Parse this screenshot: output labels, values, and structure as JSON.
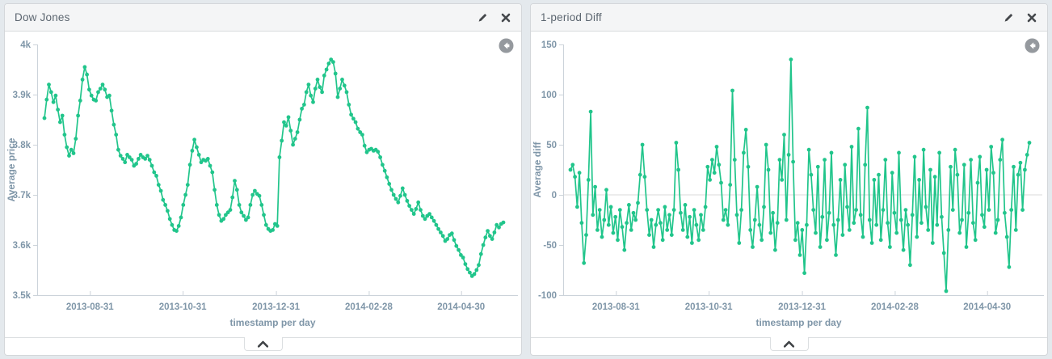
{
  "panels": [
    {
      "title": "Dow Jones",
      "actions": {
        "edit_icon": "pencil-icon",
        "close_icon": "close-icon"
      },
      "back_icon": "circle-left-arrow-icon",
      "collapse_icon": "chevron-up-icon"
    },
    {
      "title": "1-period Diff",
      "actions": {
        "edit_icon": "pencil-icon",
        "close_icon": "close-icon"
      },
      "back_icon": "circle-left-arrow-icon",
      "collapse_icon": "chevron-up-icon"
    }
  ],
  "colors": {
    "series": "#21c58b",
    "axis_text": "#7f96a8",
    "axis_line": "#ccd3da",
    "zero_line": "#d9d9d9",
    "page_bg": "#e4e9ed",
    "panel_border": "#d4d7da",
    "header_bg": "#f4f5f6",
    "title_text": "#5c6670",
    "glyph_dark": "#45484c",
    "back_circle": "#95999e"
  },
  "chart_data": [
    {
      "type": "line",
      "title": "Dow Jones",
      "ylabel": "Average price",
      "xlabel": "timestamp per day",
      "ylim": [
        3500,
        4000
      ],
      "y_ticks": [
        {
          "v": 4000,
          "label": "4k"
        },
        {
          "v": 3900,
          "label": "3.9k"
        },
        {
          "v": 3800,
          "label": "3.8k"
        },
        {
          "v": 3700,
          "label": "3.7k"
        },
        {
          "v": 3600,
          "label": "3.6k"
        },
        {
          "v": 3500,
          "label": "3.5k"
        }
      ],
      "x_ticks": [
        {
          "f": 0.112,
          "label": "2013-08-31"
        },
        {
          "f": 0.309,
          "label": "2013-10-31"
        },
        {
          "f": 0.507,
          "label": "2013-12-31"
        },
        {
          "f": 0.704,
          "label": "2014-02-28"
        },
        {
          "f": 0.9,
          "label": "2014-04-30"
        }
      ],
      "zero_line": false,
      "legend": "off",
      "grid": "off",
      "values": [
        3853,
        3890,
        3920,
        3905,
        3885,
        3898,
        3870,
        3845,
        3858,
        3820,
        3795,
        3778,
        3790,
        3783,
        3812,
        3858,
        3888,
        3930,
        3955,
        3940,
        3910,
        3898,
        3890,
        3888,
        3905,
        3912,
        3920,
        3910,
        3895,
        3898,
        3868,
        3840,
        3820,
        3790,
        3778,
        3772,
        3765,
        3780,
        3775,
        3770,
        3758,
        3762,
        3772,
        3780,
        3775,
        3772,
        3778,
        3770,
        3758,
        3745,
        3738,
        3720,
        3708,
        3690,
        3680,
        3668,
        3652,
        3640,
        3630,
        3628,
        3638,
        3655,
        3680,
        3700,
        3720,
        3760,
        3788,
        3810,
        3795,
        3780,
        3765,
        3770,
        3768,
        3772,
        3758,
        3745,
        3710,
        3680,
        3660,
        3648,
        3652,
        3660,
        3665,
        3670,
        3695,
        3728,
        3710,
        3680,
        3665,
        3658,
        3650,
        3655,
        3680,
        3700,
        3708,
        3702,
        3698,
        3680,
        3660,
        3640,
        3632,
        3628,
        3630,
        3642,
        3638,
        3775,
        3808,
        3845,
        3838,
        3855,
        3828,
        3800,
        3812,
        3825,
        3850,
        3872,
        3880,
        3905,
        3920,
        3898,
        3885,
        3912,
        3930,
        3915,
        3905,
        3938,
        3950,
        3962,
        3970,
        3965,
        3942,
        3895,
        3912,
        3930,
        3918,
        3905,
        3880,
        3860,
        3852,
        3845,
        3832,
        3825,
        3820,
        3798,
        3785,
        3790,
        3792,
        3788,
        3790,
        3786,
        3775,
        3760,
        3748,
        3735,
        3722,
        3710,
        3700,
        3692,
        3685,
        3698,
        3713,
        3700,
        3688,
        3678,
        3670,
        3662,
        3672,
        3685,
        3670,
        3658,
        3652,
        3658,
        3662,
        3655,
        3648,
        3640,
        3632,
        3625,
        3618,
        3608,
        3612,
        3620,
        3623,
        3610,
        3598,
        3590,
        3580,
        3575,
        3562,
        3552,
        3545,
        3538,
        3542,
        3550,
        3560,
        3582,
        3600,
        3615,
        3628,
        3618,
        3612,
        3625,
        3640,
        3635,
        3642,
        3645
      ]
    },
    {
      "type": "line",
      "title": "1-period Diff",
      "ylabel": "Average diff",
      "xlabel": "timestamp per day",
      "ylim": [
        -100,
        150
      ],
      "y_ticks": [
        {
          "v": 150,
          "label": "150"
        },
        {
          "v": 100,
          "label": "100"
        },
        {
          "v": 50,
          "label": "50"
        },
        {
          "v": 0,
          "label": "0"
        },
        {
          "v": -50,
          "label": "-50"
        },
        {
          "v": -100,
          "label": "-100"
        }
      ],
      "x_ticks": [
        {
          "f": 0.112,
          "label": "2013-08-31"
        },
        {
          "f": 0.309,
          "label": "2013-10-31"
        },
        {
          "f": 0.507,
          "label": "2013-12-31"
        },
        {
          "f": 0.704,
          "label": "2014-02-28"
        },
        {
          "f": 0.9,
          "label": "2014-04-30"
        }
      ],
      "zero_line": true,
      "legend": "off",
      "grid": "off",
      "values": [
        25,
        30,
        18,
        -12,
        22,
        -28,
        -68,
        -40,
        15,
        83,
        -20,
        8,
        -35,
        -15,
        -42,
        -25,
        5,
        -30,
        -12,
        -38,
        -22,
        -45,
        -15,
        -32,
        -55,
        -28,
        -10,
        -35,
        -18,
        -25,
        -8,
        20,
        50,
        18,
        -15,
        -40,
        -25,
        -52,
        -30,
        -15,
        -28,
        -45,
        -12,
        -35,
        -20,
        -40,
        -15,
        52,
        25,
        -18,
        -35,
        -10,
        -42,
        -22,
        -48,
        -15,
        -30,
        -45,
        -20,
        -35,
        -12,
        28,
        15,
        35,
        22,
        48,
        30,
        12,
        -25,
        -15,
        -30,
        10,
        104,
        35,
        -20,
        -48,
        -15,
        42,
        65,
        28,
        -35,
        -52,
        -25,
        8,
        -30,
        -45,
        -12,
        50,
        25,
        -38,
        -18,
        -55,
        -28,
        35,
        15,
        60,
        -25,
        40,
        135,
        33,
        -45,
        -28,
        -60,
        -35,
        -78,
        -30,
        45,
        20,
        -15,
        -38,
        28,
        -52,
        -22,
        35,
        -45,
        -18,
        42,
        -30,
        -60,
        -25,
        15,
        -40,
        30,
        -12,
        -35,
        48,
        -28,
        -15,
        66,
        -20,
        -42,
        30,
        87,
        -25,
        -48,
        15,
        -30,
        20,
        -45,
        -15,
        35,
        -28,
        -52,
        22,
        -18,
        -38,
        42,
        -25,
        -55,
        -15,
        -30,
        -70,
        -20,
        38,
        -42,
        15,
        -28,
        45,
        -12,
        -35,
        25,
        -48,
        18,
        -30,
        42,
        -22,
        -58,
        -96,
        -35,
        28,
        -15,
        45,
        20,
        -38,
        -25,
        30,
        -52,
        -18,
        35,
        -28,
        -45,
        12,
        38,
        -20,
        -32,
        25,
        -15,
        48,
        22,
        -38,
        -25,
        35,
        55,
        -18,
        -42,
        -72,
        -15,
        28,
        -35,
        20,
        32,
        -15,
        25,
        40,
        52
      ]
    }
  ]
}
